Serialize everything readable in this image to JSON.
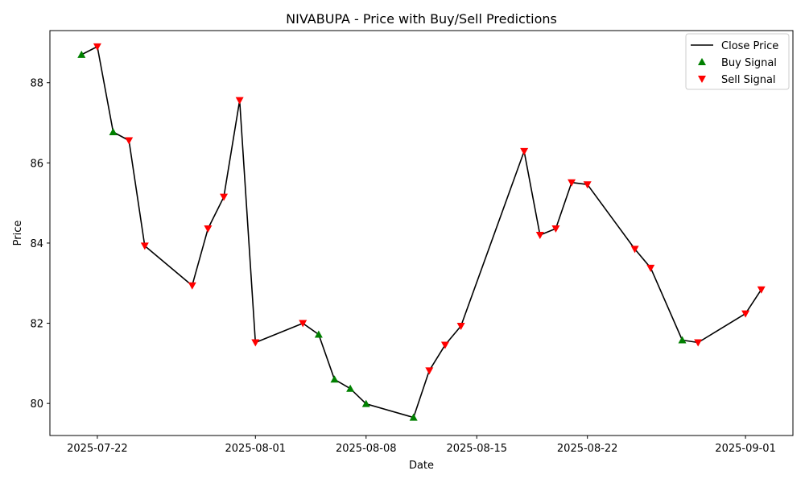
{
  "chart_data": {
    "type": "line",
    "title": "NIVABUPA - Price with Buy/Sell Predictions",
    "xlabel": "Date",
    "ylabel": "Price",
    "ylim": [
      79.2,
      89.3
    ],
    "xlim": [
      "2025-07-19",
      "2025-09-04"
    ],
    "x_ticks": [
      "2025-07-22",
      "2025-08-01",
      "2025-08-08",
      "2025-08-15",
      "2025-08-22",
      "2025-09-01"
    ],
    "y_ticks": [
      80,
      82,
      84,
      86,
      88
    ],
    "grid": false,
    "legend_position": "top-right",
    "series": [
      {
        "name": "Close Price",
        "color": "#000000",
        "points": [
          {
            "x": "2025-07-21",
            "y": 88.7
          },
          {
            "x": "2025-07-22",
            "y": 88.9
          },
          {
            "x": "2025-07-23",
            "y": 86.77
          },
          {
            "x": "2025-07-24",
            "y": 86.56
          },
          {
            "x": "2025-07-25",
            "y": 83.93
          },
          {
            "x": "2025-07-28",
            "y": 82.94
          },
          {
            "x": "2025-07-29",
            "y": 84.36
          },
          {
            "x": "2025-07-30",
            "y": 85.15
          },
          {
            "x": "2025-07-31",
            "y": 87.56
          },
          {
            "x": "2025-08-01",
            "y": 81.52
          },
          {
            "x": "2025-08-04",
            "y": 82.0
          },
          {
            "x": "2025-08-05",
            "y": 81.72
          },
          {
            "x": "2025-08-06",
            "y": 80.6
          },
          {
            "x": "2025-08-07",
            "y": 80.37
          },
          {
            "x": "2025-08-08",
            "y": 79.99
          },
          {
            "x": "2025-08-11",
            "y": 79.65
          },
          {
            "x": "2025-08-12",
            "y": 80.82
          },
          {
            "x": "2025-08-13",
            "y": 81.46
          },
          {
            "x": "2025-08-14",
            "y": 81.93
          },
          {
            "x": "2025-08-18",
            "y": 86.29
          },
          {
            "x": "2025-08-19",
            "y": 84.2
          },
          {
            "x": "2025-08-20",
            "y": 84.36
          },
          {
            "x": "2025-08-21",
            "y": 85.51
          },
          {
            "x": "2025-08-22",
            "y": 85.46
          },
          {
            "x": "2025-08-25",
            "y": 83.85
          },
          {
            "x": "2025-08-26",
            "y": 83.38
          },
          {
            "x": "2025-08-28",
            "y": 81.58
          },
          {
            "x": "2025-08-29",
            "y": 81.52
          },
          {
            "x": "2025-09-01",
            "y": 82.24
          },
          {
            "x": "2025-09-02",
            "y": 82.84
          }
        ]
      },
      {
        "name": "Buy Signal",
        "color": "#008000",
        "marker": "triangle-up",
        "points": [
          {
            "x": "2025-07-21",
            "y": 88.7
          },
          {
            "x": "2025-07-23",
            "y": 86.77
          },
          {
            "x": "2025-08-05",
            "y": 81.72
          },
          {
            "x": "2025-08-06",
            "y": 80.6
          },
          {
            "x": "2025-08-07",
            "y": 80.37
          },
          {
            "x": "2025-08-08",
            "y": 79.99
          },
          {
            "x": "2025-08-11",
            "y": 79.65
          },
          {
            "x": "2025-08-28",
            "y": 81.58
          }
        ]
      },
      {
        "name": "Sell Signal",
        "color": "#ff0000",
        "marker": "triangle-down",
        "points": [
          {
            "x": "2025-07-22",
            "y": 88.9
          },
          {
            "x": "2025-07-24",
            "y": 86.56
          },
          {
            "x": "2025-07-25",
            "y": 83.93
          },
          {
            "x": "2025-07-28",
            "y": 82.94
          },
          {
            "x": "2025-07-29",
            "y": 84.36
          },
          {
            "x": "2025-07-30",
            "y": 85.15
          },
          {
            "x": "2025-07-31",
            "y": 87.56
          },
          {
            "x": "2025-08-01",
            "y": 81.52
          },
          {
            "x": "2025-08-04",
            "y": 82.0
          },
          {
            "x": "2025-08-12",
            "y": 80.82
          },
          {
            "x": "2025-08-13",
            "y": 81.46
          },
          {
            "x": "2025-08-14",
            "y": 81.93
          },
          {
            "x": "2025-08-18",
            "y": 86.29
          },
          {
            "x": "2025-08-19",
            "y": 84.2
          },
          {
            "x": "2025-08-20",
            "y": 84.36
          },
          {
            "x": "2025-08-21",
            "y": 85.51
          },
          {
            "x": "2025-08-22",
            "y": 85.46
          },
          {
            "x": "2025-08-25",
            "y": 83.85
          },
          {
            "x": "2025-08-26",
            "y": 83.38
          },
          {
            "x": "2025-08-29",
            "y": 81.52
          },
          {
            "x": "2025-09-01",
            "y": 82.24
          },
          {
            "x": "2025-09-02",
            "y": 82.84
          }
        ]
      }
    ]
  }
}
